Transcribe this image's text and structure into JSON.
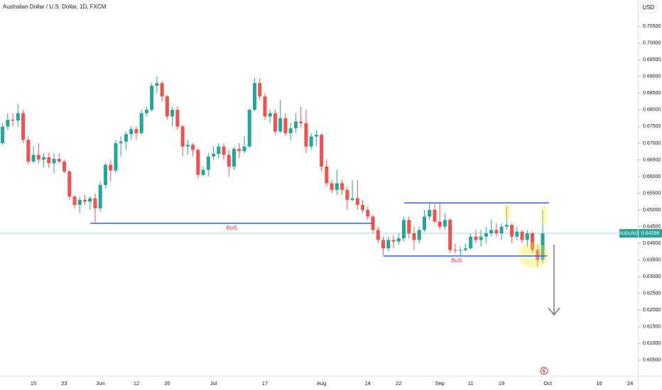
{
  "chart_data": {
    "type": "candlestick",
    "title": "Australian Dollar / U.S. Dollar, 1D, FXCM",
    "currency": "USD",
    "symbol": "AUDUSD",
    "categories": [
      null,
      null,
      null,
      null,
      null,
      null,
      "15",
      null,
      null,
      null,
      null,
      null,
      "23",
      null,
      null,
      null,
      null,
      null,
      null,
      "Jun",
      null,
      null,
      null,
      null,
      null,
      null,
      "12",
      null,
      null,
      null,
      null,
      null,
      "20",
      null,
      null,
      null,
      null,
      null,
      null,
      null,
      null,
      "Jul",
      null,
      null,
      null,
      null,
      null,
      null,
      null,
      null,
      null,
      "17",
      null,
      null,
      null,
      null,
      null,
      null,
      null,
      null,
      null,
      null,
      "Aug",
      null,
      null,
      null,
      null,
      null,
      null,
      null,
      null,
      "14",
      null,
      null,
      null,
      null,
      null,
      "22",
      null,
      null,
      null,
      null,
      null,
      null,
      null,
      "Sep",
      null,
      null,
      null,
      null,
      null,
      "11",
      null,
      null,
      null,
      null,
      null,
      "19",
      null,
      null,
      null,
      null,
      null,
      null,
      null,
      null,
      "Oct",
      null,
      null,
      null,
      null,
      null,
      null,
      null,
      null,
      null,
      "16",
      null,
      null,
      null,
      null,
      null,
      "24",
      null
    ],
    "open": [
      0.67,
      0.675,
      0.677,
      0.6768,
      0.679,
      0.671,
      0.6645,
      0.6665,
      0.6651,
      0.6658,
      0.664,
      0.6653,
      0.6645,
      0.6615,
      0.654,
      0.6515,
      0.653,
      0.6525,
      0.6535,
      0.6505,
      0.6575,
      0.6635,
      0.6618,
      0.67,
      0.6705,
      0.6727,
      0.6742,
      0.673,
      0.679,
      0.68,
      0.6872,
      0.688,
      0.684,
      0.678,
      0.68,
      0.675,
      0.669,
      0.6695,
      0.668,
      0.6605,
      0.662,
      0.666,
      0.6668,
      0.669,
      0.6665,
      0.663,
      0.6683,
      0.6676,
      0.669,
      0.68,
      0.688,
      0.684,
      0.678,
      0.679,
      0.6735,
      0.6775,
      0.673,
      0.6745,
      0.6765,
      0.676,
      0.669,
      0.672,
      0.6725,
      0.663,
      0.658,
      0.656,
      0.658,
      0.656,
      0.653,
      0.6535,
      0.6515,
      0.65,
      0.648,
      0.644,
      0.641,
      0.6385,
      0.641,
      0.6405,
      0.6415,
      0.647,
      0.643,
      0.641,
      0.644,
      0.648,
      0.65,
      0.6465,
      0.645,
      0.647,
      0.638,
      0.6378,
      0.638,
      0.6385,
      0.642,
      0.641,
      0.642,
      0.643,
      0.644,
      0.643,
      0.645,
      0.6455,
      0.642,
      0.6435,
      0.641,
      0.643,
      0.638,
      0.635,
      null,
      null,
      null,
      null,
      null,
      null,
      null,
      null,
      null,
      null,
      null,
      null,
      null,
      null,
      null,
      null,
      null,
      null
    ],
    "high": [
      0.676,
      0.679,
      0.679,
      0.6818,
      0.68,
      0.672,
      0.669,
      0.67,
      0.667,
      0.6672,
      0.667,
      0.667,
      0.665,
      0.662,
      0.6545,
      0.654,
      0.6545,
      0.654,
      0.655,
      0.6585,
      0.664,
      0.665,
      0.671,
      0.672,
      0.6735,
      0.675,
      0.675,
      0.68,
      0.681,
      0.688,
      0.69,
      0.6885,
      0.6845,
      0.681,
      0.681,
      0.6755,
      0.671,
      0.67,
      0.6685,
      0.663,
      0.667,
      0.669,
      0.67,
      0.67,
      0.668,
      0.669,
      0.67,
      0.672,
      0.6805,
      0.6895,
      0.6895,
      0.685,
      0.68,
      0.68,
      0.683,
      0.679,
      0.676,
      0.679,
      0.681,
      0.68,
      0.673,
      0.674,
      0.673,
      0.665,
      0.659,
      0.662,
      0.659,
      0.657,
      0.659,
      0.659,
      0.653,
      0.651,
      0.6485,
      0.645,
      0.642,
      0.642,
      0.6425,
      0.643,
      0.648,
      0.648,
      0.645,
      0.645,
      0.65,
      0.652,
      0.652,
      0.652,
      0.649,
      0.6475,
      0.64,
      0.639,
      0.64,
      0.643,
      0.644,
      0.644,
      0.645,
      0.647,
      0.646,
      0.646,
      0.651,
      0.646,
      0.645,
      0.644,
      0.644,
      0.6435,
      0.6395,
      0.65,
      null,
      null,
      null,
      null,
      null,
      null,
      null,
      null,
      null,
      null,
      null,
      null,
      null,
      null,
      null,
      null,
      null,
      null
    ],
    "low": [
      0.6695,
      0.674,
      0.675,
      0.675,
      0.67,
      0.6636,
      0.664,
      0.664,
      0.6627,
      0.6626,
      0.661,
      0.664,
      0.661,
      0.653,
      0.6505,
      0.649,
      0.6515,
      0.65,
      0.646,
      0.6495,
      0.6565,
      0.6585,
      0.661,
      0.666,
      0.668,
      0.671,
      0.671,
      0.6725,
      0.678,
      0.6795,
      0.685,
      0.6825,
      0.677,
      0.675,
      0.674,
      0.666,
      0.6665,
      0.666,
      0.6595,
      0.66,
      0.66,
      0.665,
      0.6655,
      0.665,
      0.66,
      0.662,
      0.6655,
      0.667,
      0.6685,
      0.6795,
      0.683,
      0.677,
      0.676,
      0.6725,
      0.673,
      0.672,
      0.671,
      0.673,
      0.6745,
      0.667,
      0.668,
      0.669,
      0.6615,
      0.657,
      0.655,
      0.6545,
      0.6545,
      0.65,
      0.6525,
      0.65,
      0.649,
      0.647,
      0.643,
      0.64,
      0.6364,
      0.6375,
      0.6385,
      0.6395,
      0.6405,
      0.6415,
      0.638,
      0.64,
      0.6435,
      0.647,
      0.646,
      0.644,
      0.644,
      0.637,
      0.637,
      0.636,
      0.6375,
      0.638,
      0.64,
      0.639,
      0.64,
      0.642,
      0.642,
      0.641,
      0.644,
      0.64,
      0.641,
      0.64,
      0.639,
      0.637,
      0.633,
      0.634,
      null,
      null,
      null,
      null,
      null,
      null,
      null,
      null,
      null,
      null,
      null,
      null,
      null,
      null,
      null,
      null,
      null,
      null
    ],
    "close": [
      0.675,
      0.677,
      0.6768,
      0.679,
      0.671,
      0.6645,
      0.6665,
      0.6651,
      0.6658,
      0.664,
      0.6653,
      0.6645,
      0.6615,
      0.654,
      0.6515,
      0.653,
      0.6525,
      0.6535,
      0.6505,
      0.6575,
      0.6635,
      0.6618,
      0.67,
      0.6705,
      0.6727,
      0.6742,
      0.673,
      0.679,
      0.68,
      0.6872,
      0.688,
      0.684,
      0.678,
      0.68,
      0.675,
      0.669,
      0.6695,
      0.668,
      0.6605,
      0.662,
      0.666,
      0.6668,
      0.669,
      0.6665,
      0.663,
      0.6683,
      0.6676,
      0.669,
      0.68,
      0.688,
      0.684,
      0.678,
      0.679,
      0.6735,
      0.6775,
      0.673,
      0.6745,
      0.6765,
      0.676,
      0.669,
      0.672,
      0.6725,
      0.663,
      0.658,
      0.656,
      0.658,
      0.656,
      0.653,
      0.6535,
      0.6515,
      0.65,
      0.648,
      0.644,
      0.641,
      0.6385,
      0.641,
      0.6405,
      0.6415,
      0.647,
      0.643,
      0.641,
      0.644,
      0.648,
      0.65,
      0.6465,
      0.645,
      0.647,
      0.638,
      0.6378,
      0.638,
      0.6385,
      0.642,
      0.641,
      0.642,
      0.643,
      0.644,
      0.643,
      0.645,
      0.6455,
      0.642,
      0.6435,
      0.641,
      0.643,
      0.638,
      0.635,
      0.643,
      null,
      null,
      null,
      null,
      null,
      null,
      null,
      null,
      null,
      null,
      null,
      null,
      null,
      null,
      null,
      null,
      null,
      null
    ],
    "up_color": "#26a69a",
    "down_color": "#ef5350",
    "ylim": [
      0.6003,
      0.7129
    ],
    "yticks": [
      {
        "value": 0.605,
        "label": "0.60500"
      },
      {
        "value": 0.61,
        "label": "0.61000"
      },
      {
        "value": 0.615,
        "label": "0.61500"
      },
      {
        "value": 0.62,
        "label": "0.62000"
      },
      {
        "value": 0.625,
        "label": "0.62500"
      },
      {
        "value": 0.63,
        "label": "0.63000"
      },
      {
        "value": 0.635,
        "label": "0.63500"
      },
      {
        "value": 0.64,
        "label": "0.64000"
      },
      {
        "value": 0.645,
        "label": "0.64500"
      },
      {
        "value": 0.65,
        "label": "0.65000"
      },
      {
        "value": 0.655,
        "label": "0.65500"
      },
      {
        "value": 0.66,
        "label": "0.66000"
      },
      {
        "value": 0.665,
        "label": "0.66500"
      },
      {
        "value": 0.67,
        "label": "0.67000"
      },
      {
        "value": 0.675,
        "label": "0.67500"
      },
      {
        "value": 0.68,
        "label": "0.68000"
      },
      {
        "value": 0.685,
        "label": "0.68500"
      },
      {
        "value": 0.69,
        "label": "0.69000"
      },
      {
        "value": 0.695,
        "label": "0.69500"
      },
      {
        "value": 0.7,
        "label": "0.70000"
      },
      {
        "value": 0.705,
        "label": "0.70500"
      }
    ],
    "grid": false,
    "last_price": 0.64299,
    "levels": [
      {
        "value": 0.646,
        "label": "BoS",
        "color": "#2962ff"
      },
      {
        "value": 0.6521,
        "color": "#2962ff"
      },
      {
        "value": 0.6362,
        "label": "BoS",
        "color": "#2962ff"
      }
    ]
  }
}
